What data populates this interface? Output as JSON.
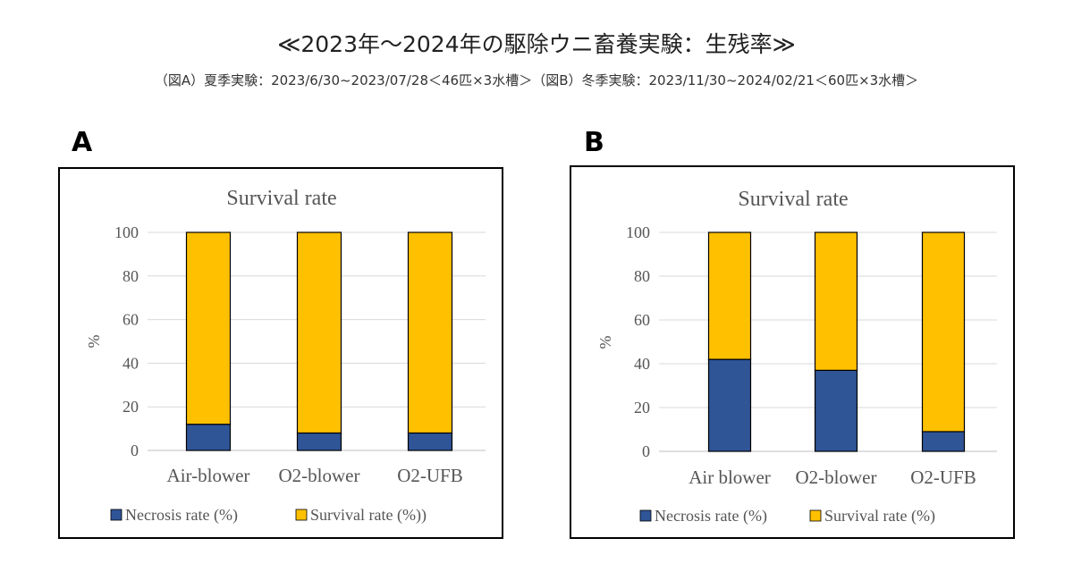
{
  "header": {
    "title": "≪2023年～2024年の駆除ウニ畜養実験：生残率≫",
    "subtitle": "（図A）夏季実験：2023/6/30~2023/07/28＜46匹×3水槽＞（図B）冬季実験：2023/11/30~2024/02/21＜60匹×3水槽＞"
  },
  "colors": {
    "necrosis": "#2f5597",
    "survival": "#ffc000",
    "grid": "#d9d9d9"
  },
  "chart_data": [
    {
      "panel": "A",
      "type": "bar",
      "stacked": true,
      "title": "Survival rate",
      "ylabel": "%",
      "ylim": [
        0,
        100
      ],
      "yticks": [
        "0",
        "20",
        "40",
        "60",
        "80",
        "100"
      ],
      "categories": [
        "Air-blower",
        "O2-blower",
        "O2-UFB"
      ],
      "series": [
        {
          "name": "Necrosis rate (%)",
          "values": [
            12,
            8,
            8
          ]
        },
        {
          "name": "Survival rate (%))",
          "values": [
            88,
            92,
            92
          ]
        }
      ]
    },
    {
      "panel": "B",
      "type": "bar",
      "stacked": true,
      "title": "Survival rate",
      "ylabel": "%",
      "ylim": [
        0,
        100
      ],
      "yticks": [
        "0",
        "20",
        "40",
        "60",
        "80",
        "100"
      ],
      "categories": [
        "Air blower",
        "O2-blower",
        "O2-UFB"
      ],
      "series": [
        {
          "name": "Necrosis rate (%)",
          "values": [
            42,
            37,
            9
          ]
        },
        {
          "name": "Survival rate (%)",
          "values": [
            58,
            63,
            91
          ]
        }
      ]
    }
  ]
}
